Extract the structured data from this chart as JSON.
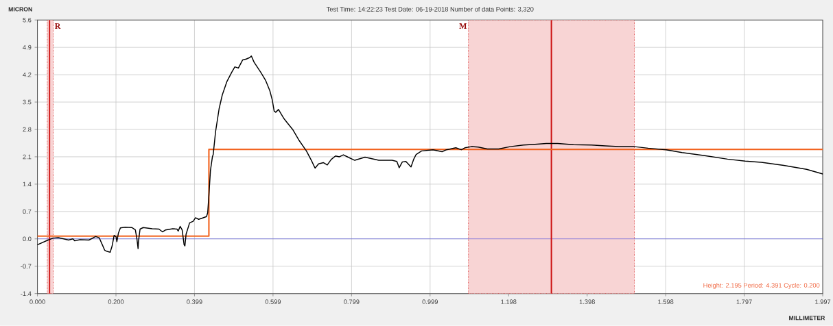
{
  "chart_data": {
    "type": "line",
    "title": "Test Time: 14:22:23 Test Date: 06-19-2018 Number of data Points: 3,320",
    "xlabel": "MILLIMETER",
    "ylabel": "MICRON",
    "annotations": [
      "Height: 2.195 Period: 4.391 Cycle: 0.200"
    ],
    "xlim": [
      0,
      1.997
    ],
    "xticks": [
      {
        "value": 0,
        "label": "0.000"
      },
      {
        "value": 0.1997,
        "label": "0.200"
      },
      {
        "value": 0.3994,
        "label": "0.399"
      },
      {
        "value": 0.5991,
        "label": "0.599"
      },
      {
        "value": 0.7988,
        "label": "0.799"
      },
      {
        "value": 0.9985,
        "label": "0.999"
      },
      {
        "value": 1.1982,
        "label": "1.198"
      },
      {
        "value": 1.3979,
        "label": "1.398"
      },
      {
        "value": 1.5976,
        "label": "1.598"
      },
      {
        "value": 1.7973,
        "label": "1.797"
      },
      {
        "value": 1.997,
        "label": "1.997"
      }
    ],
    "ylim": [
      -1.4,
      5.6
    ],
    "yticks": [
      -1.4,
      -0.7,
      {
        "value": 0,
        "label": "0.0"
      },
      0.7,
      1.4,
      2.1,
      2.8,
      3.5,
      4.2,
      4.9,
      5.6
    ],
    "grid": true,
    "bands": [
      {
        "axis": "x",
        "from": 0.025,
        "to": 0.04,
        "label": "R",
        "color": "#f8d4d4"
      },
      {
        "axis": "x",
        "from": 1.096,
        "to": 1.518,
        "label": "M",
        "color": "#f8d4d4"
      }
    ],
    "ref_lines": [
      {
        "axis": "y",
        "value": 0,
        "color": "#3c3cdc"
      },
      {
        "axis": "x",
        "value": 0.031,
        "color": "#cc1010"
      },
      {
        "axis": "x",
        "value": 1.307,
        "color": "#cc1010"
      }
    ],
    "series": [
      {
        "type": "step",
        "color": "#f26522",
        "x": [
          0,
          0.436,
          1.997
        ],
        "values": [
          0.07,
          2.29,
          2.29
        ]
      },
      {
        "type": "line",
        "color": "#000000",
        "x": [
          0.0,
          0.027,
          0.04,
          0.053,
          0.067,
          0.079,
          0.09,
          0.095,
          0.108,
          0.131,
          0.148,
          0.157,
          0.165,
          0.171,
          0.177,
          0.185,
          0.19,
          0.195,
          0.2,
          0.202,
          0.206,
          0.211,
          0.223,
          0.24,
          0.249,
          0.253,
          0.256,
          0.257,
          0.261,
          0.269,
          0.292,
          0.309,
          0.318,
          0.326,
          0.344,
          0.355,
          0.358,
          0.363,
          0.368,
          0.373,
          0.375,
          0.378,
          0.387,
          0.396,
          0.402,
          0.41,
          0.419,
          0.43,
          0.433,
          0.436,
          0.44,
          0.445,
          0.447,
          0.453,
          0.462,
          0.47,
          0.482,
          0.494,
          0.502,
          0.511,
          0.522,
          0.531,
          0.54,
          0.544,
          0.551,
          0.568,
          0.58,
          0.591,
          0.597,
          0.602,
          0.606,
          0.613,
          0.626,
          0.637,
          0.649,
          0.666,
          0.684,
          0.697,
          0.706,
          0.715,
          0.727,
          0.737,
          0.747,
          0.758,
          0.768,
          0.778,
          0.79,
          0.807,
          0.833,
          0.868,
          0.902,
          0.914,
          0.92,
          0.928,
          0.937,
          0.95,
          0.957,
          0.963,
          0.977,
          1.006,
          1.029,
          1.04,
          1.064,
          1.078,
          1.087,
          1.104,
          1.121,
          1.144,
          1.173,
          1.202,
          1.236,
          1.265,
          1.294,
          1.323,
          1.363,
          1.409,
          1.444,
          1.478,
          1.518,
          1.553,
          1.599,
          1.639,
          1.697,
          1.755,
          1.8,
          1.841,
          1.898,
          1.956,
          1.997
        ],
        "values": [
          -0.15,
          -0.03,
          0.02,
          0.03,
          0.0,
          -0.03,
          0.0,
          -0.05,
          -0.02,
          -0.03,
          0.06,
          0.03,
          -0.15,
          -0.29,
          -0.32,
          -0.34,
          -0.18,
          0.09,
          0.05,
          -0.07,
          0.15,
          0.28,
          0.3,
          0.29,
          0.23,
          0.0,
          -0.25,
          -0.06,
          0.25,
          0.29,
          0.26,
          0.25,
          0.18,
          0.23,
          0.26,
          0.25,
          0.2,
          0.32,
          0.23,
          -0.15,
          -0.18,
          0.12,
          0.41,
          0.45,
          0.54,
          0.5,
          0.53,
          0.57,
          0.67,
          1.11,
          1.75,
          2.1,
          2.16,
          2.74,
          3.33,
          3.68,
          4.03,
          4.26,
          4.4,
          4.37,
          4.58,
          4.6,
          4.64,
          4.68,
          4.52,
          4.26,
          4.06,
          3.79,
          3.56,
          3.27,
          3.24,
          3.31,
          3.09,
          2.95,
          2.8,
          2.51,
          2.25,
          2.0,
          1.81,
          1.92,
          1.95,
          1.89,
          2.03,
          2.12,
          2.1,
          2.15,
          2.09,
          2.01,
          2.09,
          2.01,
          2.01,
          1.98,
          1.82,
          1.97,
          1.98,
          1.84,
          2.04,
          2.16,
          2.25,
          2.28,
          2.23,
          2.28,
          2.33,
          2.28,
          2.33,
          2.36,
          2.35,
          2.3,
          2.3,
          2.36,
          2.4,
          2.42,
          2.44,
          2.44,
          2.41,
          2.4,
          2.38,
          2.36,
          2.36,
          2.32,
          2.28,
          2.21,
          2.13,
          2.04,
          1.99,
          1.96,
          1.88,
          1.78,
          1.66
        ]
      }
    ]
  }
}
